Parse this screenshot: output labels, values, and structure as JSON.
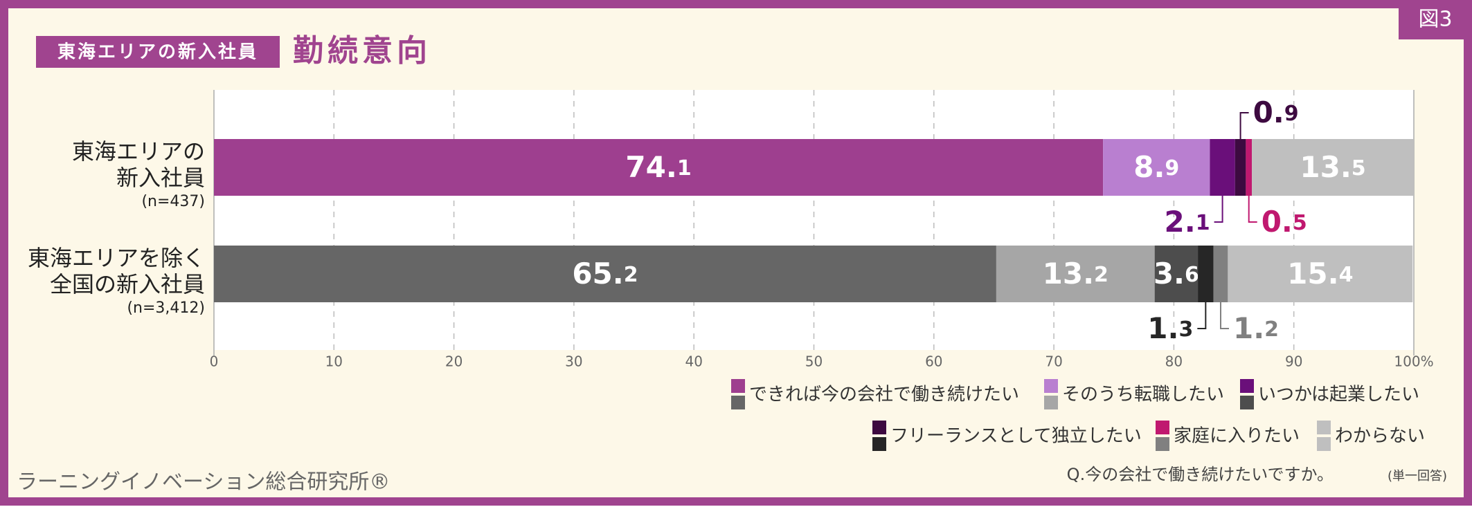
{
  "badge": "図3",
  "subtitle": "東海エリアの新入社員",
  "title": "勤続意向",
  "source": "ラーニングイノベーション総合研究所®",
  "question": "Q.今の会社で働き続けたいですか。",
  "question_note": "(単一回答)",
  "chart_data": {
    "type": "stacked-bar-horizontal",
    "categories": [
      [
        "東海エリアの",
        "新入社員"
      ],
      [
        "東海エリアを除く",
        "全国の新入社員"
      ]
    ],
    "category_notes": [
      "(n=437)",
      "(n=3,412)"
    ],
    "series": [
      {
        "name": "できれば今の会社で働き続けたい",
        "colors": [
          "#9e3f8f",
          "#666666"
        ],
        "values": [
          74.1,
          65.2
        ]
      },
      {
        "name": "そのうち転職したい",
        "colors": [
          "#b97fd0",
          "#a6a6a6"
        ],
        "values": [
          8.9,
          13.2
        ]
      },
      {
        "name": "いつかは起業したい",
        "colors": [
          "#6a0f7a",
          "#4d4d4d"
        ],
        "values": [
          2.1,
          3.6
        ]
      },
      {
        "name": "フリーランスとして独立したい",
        "colors": [
          "#3d0a40",
          "#262626"
        ],
        "values": [
          0.9,
          1.3
        ]
      },
      {
        "name": "家庭に入りたい",
        "colors": [
          "#c0186f",
          "#808080"
        ],
        "values": [
          0.5,
          1.2
        ]
      },
      {
        "name": "わからない",
        "colors": [
          "#bfbfbf",
          "#bfbfbf"
        ],
        "values": [
          13.5,
          15.4
        ]
      }
    ],
    "xlim": [
      0,
      100
    ],
    "xticks": [
      0,
      10,
      20,
      30,
      40,
      50,
      60,
      70,
      80,
      90,
      {
        "value": 100,
        "label": "100%"
      }
    ],
    "grid": true
  }
}
